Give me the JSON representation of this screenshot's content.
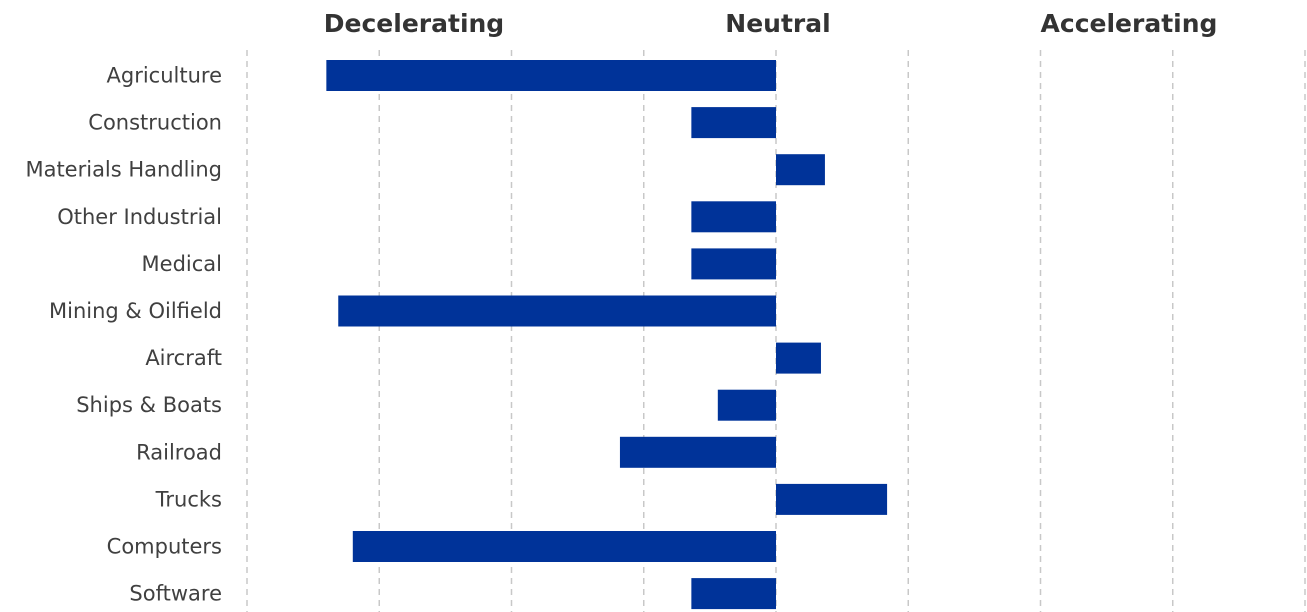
{
  "chart_data": {
    "type": "bar",
    "orientation": "horizontal",
    "headers": {
      "left": "Decelerating",
      "center": "Neutral",
      "right": "Accelerating"
    },
    "categories": [
      "Agriculture",
      "Construction",
      "Materials Handling",
      "Other Industrial",
      "Medical",
      "Mining & Oilfield",
      "Aircraft",
      "Ships & Boats",
      "Railroad",
      "Trucks",
      "Computers",
      "Software"
    ],
    "values": [
      -3.4,
      -0.64,
      0.37,
      -0.64,
      -0.64,
      -3.31,
      0.34,
      -0.44,
      -1.18,
      0.84,
      -3.2,
      -0.64
    ],
    "xlim": [
      -4,
      4
    ],
    "grid": true,
    "bar_color": "#003399"
  }
}
